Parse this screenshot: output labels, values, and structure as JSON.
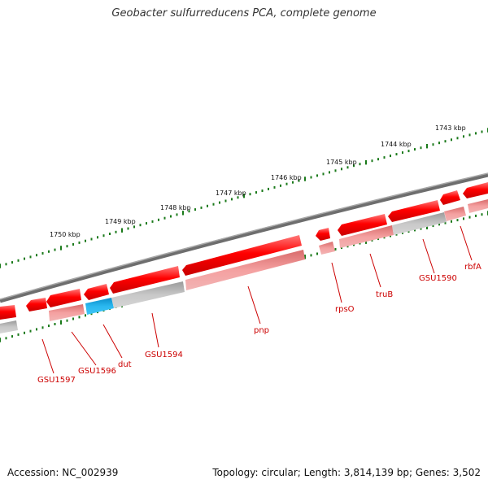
{
  "title": "Geobacter sulfurreducens PCA, complete genome",
  "footer": {
    "accession": "Accession: NC_002939",
    "summary": "Topology: circular; Length: 3,814,139 bp; Genes: 3,502"
  },
  "scale_labels": [
    "1743 kbp",
    "1744 kbp",
    "1745 kbp",
    "1746 kbp",
    "1747 kbp",
    "1748 kbp",
    "1749 kbp",
    "1750 kbp"
  ],
  "gene_labels": [
    "rbfA",
    "GSU1590",
    "truB",
    "rpsO",
    "pnp",
    "GSU1594",
    "dut",
    "GSU1596",
    "GSU1597"
  ],
  "colors": {
    "backbone": "#7a7a7a",
    "gene": "#ee0000",
    "gene_highlight": "#ff6b6b",
    "cds": "#f08080",
    "cds_gray": "#bdbdbd",
    "cds_blue": "#1aa7e0",
    "ticks": "#1a7a1a",
    "label": "#cc0000"
  }
}
